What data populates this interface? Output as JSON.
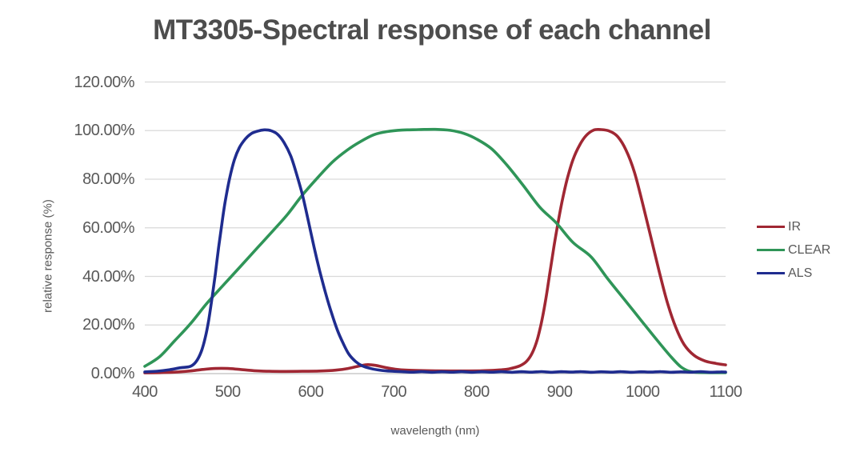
{
  "chart_data": {
    "type": "line",
    "title": "MT3305-Spectral response of each channel",
    "xlabel": "wavelength (nm)",
    "ylabel": "relative response (%)",
    "xlim": [
      400,
      1100
    ],
    "ylim_percent": [
      0,
      120
    ],
    "grid": "horizontal",
    "legend_position": "right",
    "x_ticks": [
      400,
      500,
      600,
      700,
      800,
      900,
      1000,
      1100
    ],
    "y_ticks": [
      {
        "value": 0,
        "label": "0.00%"
      },
      {
        "value": 20,
        "label": "20.00%"
      },
      {
        "value": 40,
        "label": "40.00%"
      },
      {
        "value": 60,
        "label": "60.00%"
      },
      {
        "value": 80,
        "label": "80.00%"
      },
      {
        "value": 100,
        "label": "100.00%"
      },
      {
        "value": 120,
        "label": "120.00%"
      }
    ],
    "series": [
      {
        "name": "IR",
        "color": "#a02733",
        "points": [
          [
            400,
            0.3
          ],
          [
            418,
            0.4
          ],
          [
            436,
            0.6
          ],
          [
            455,
            1.1
          ],
          [
            470,
            1.7
          ],
          [
            485,
            2.1
          ],
          [
            500,
            2.1
          ],
          [
            515,
            1.7
          ],
          [
            532,
            1.2
          ],
          [
            550,
            0.95
          ],
          [
            570,
            0.9
          ],
          [
            590,
            0.95
          ],
          [
            610,
            1.05
          ],
          [
            630,
            1.4
          ],
          [
            645,
            2.1
          ],
          [
            658,
            3.1
          ],
          [
            668,
            3.7
          ],
          [
            678,
            3.4
          ],
          [
            690,
            2.5
          ],
          [
            702,
            1.8
          ],
          [
            716,
            1.4
          ],
          [
            732,
            1.25
          ],
          [
            750,
            1.15
          ],
          [
            768,
            1.1
          ],
          [
            786,
            1.1
          ],
          [
            804,
            1.15
          ],
          [
            820,
            1.35
          ],
          [
            832,
            1.6
          ],
          [
            840,
            2
          ],
          [
            852,
            3.2
          ],
          [
            860,
            5
          ],
          [
            867,
            8.5
          ],
          [
            873,
            14
          ],
          [
            878,
            21
          ],
          [
            883,
            30
          ],
          [
            888,
            41
          ],
          [
            893,
            52
          ],
          [
            898,
            62
          ],
          [
            903,
            71
          ],
          [
            909,
            80
          ],
          [
            916,
            88
          ],
          [
            924,
            94
          ],
          [
            932,
            98
          ],
          [
            941,
            100.2
          ],
          [
            950,
            100.4
          ],
          [
            960,
            99.8
          ],
          [
            970,
            97.5
          ],
          [
            980,
            92
          ],
          [
            990,
            83
          ],
          [
            1000,
            70
          ],
          [
            1010,
            56
          ],
          [
            1020,
            42
          ],
          [
            1030,
            29
          ],
          [
            1040,
            19
          ],
          [
            1050,
            12
          ],
          [
            1062,
            7.5
          ],
          [
            1075,
            5.2
          ],
          [
            1088,
            4.2
          ],
          [
            1100,
            3.6
          ]
        ]
      },
      {
        "name": "CLEAR",
        "color": "#2f9558",
        "points": [
          [
            400,
            3
          ],
          [
            418,
            7
          ],
          [
            436,
            13.5
          ],
          [
            455,
            20.5
          ],
          [
            475,
            29
          ],
          [
            495,
            36.5
          ],
          [
            515,
            44
          ],
          [
            535,
            51.5
          ],
          [
            555,
            59
          ],
          [
            572,
            65.5
          ],
          [
            590,
            73.5
          ],
          [
            608,
            80.5
          ],
          [
            626,
            87
          ],
          [
            644,
            92
          ],
          [
            660,
            95.5
          ],
          [
            676,
            98.3
          ],
          [
            692,
            99.6
          ],
          [
            710,
            100.2
          ],
          [
            730,
            100.4
          ],
          [
            750,
            100.5
          ],
          [
            768,
            100.1
          ],
          [
            785,
            98.8
          ],
          [
            800,
            96.5
          ],
          [
            818,
            92.5
          ],
          [
            836,
            86
          ],
          [
            856,
            77.5
          ],
          [
            876,
            68.5
          ],
          [
            896,
            62
          ],
          [
            916,
            54
          ],
          [
            938,
            48
          ],
          [
            958,
            39
          ],
          [
            978,
            30.5
          ],
          [
            998,
            22
          ],
          [
            1018,
            13.5
          ],
          [
            1034,
            7
          ],
          [
            1046,
            2.8
          ],
          [
            1056,
            1
          ],
          [
            1066,
            0.5
          ],
          [
            1080,
            0.4
          ],
          [
            1100,
            0.4
          ]
        ]
      },
      {
        "name": "ALS",
        "color": "#1f2c8f",
        "points": [
          [
            400,
            0.7
          ],
          [
            415,
            1.0
          ],
          [
            430,
            1.6
          ],
          [
            443,
            2.4
          ],
          [
            455,
            3
          ],
          [
            462,
            5
          ],
          [
            468,
            9
          ],
          [
            473,
            15
          ],
          [
            477,
            22
          ],
          [
            481,
            31
          ],
          [
            485,
            41
          ],
          [
            489,
            52
          ],
          [
            493,
            62
          ],
          [
            497,
            71
          ],
          [
            502,
            80
          ],
          [
            508,
            88
          ],
          [
            514,
            93
          ],
          [
            521,
            96.5
          ],
          [
            528,
            98.7
          ],
          [
            536,
            99.8
          ],
          [
            544,
            100.3
          ],
          [
            552,
            100
          ],
          [
            560,
            98.5
          ],
          [
            568,
            95
          ],
          [
            576,
            89.5
          ],
          [
            583,
            82
          ],
          [
            590,
            73.5
          ],
          [
            597,
            63
          ],
          [
            604,
            52
          ],
          [
            611,
            42
          ],
          [
            618,
            33
          ],
          [
            625,
            25
          ],
          [
            632,
            18
          ],
          [
            639,
            12.5
          ],
          [
            646,
            8
          ],
          [
            654,
            5
          ],
          [
            662,
            3.2
          ],
          [
            671,
            2.2
          ],
          [
            681,
            1.5
          ],
          [
            692,
            1.1
          ],
          [
            704,
            0.9
          ],
          [
            710,
            0.8
          ],
          [
            722,
            0.6
          ],
          [
            734,
            0.8
          ],
          [
            746,
            0.55
          ],
          [
            758,
            0.75
          ],
          [
            770,
            0.6
          ],
          [
            782,
            0.8
          ],
          [
            794,
            0.55
          ],
          [
            806,
            0.75
          ],
          [
            818,
            0.6
          ],
          [
            830,
            0.8
          ],
          [
            842,
            0.55
          ],
          [
            854,
            0.78
          ],
          [
            866,
            0.6
          ],
          [
            878,
            0.82
          ],
          [
            890,
            0.55
          ],
          [
            902,
            0.78
          ],
          [
            914,
            0.62
          ],
          [
            926,
            0.8
          ],
          [
            938,
            0.55
          ],
          [
            950,
            0.75
          ],
          [
            962,
            0.6
          ],
          [
            974,
            0.8
          ],
          [
            986,
            0.55
          ],
          [
            998,
            0.75
          ],
          [
            1010,
            0.62
          ],
          [
            1022,
            0.8
          ],
          [
            1034,
            0.55
          ],
          [
            1046,
            0.72
          ],
          [
            1058,
            0.6
          ],
          [
            1070,
            0.78
          ],
          [
            1082,
            0.55
          ],
          [
            1094,
            0.7
          ],
          [
            1100,
            0.62
          ]
        ]
      }
    ]
  },
  "colors": {
    "title_text": "#4d4d4d",
    "axis_text": "#595959",
    "grid_line": "#d9d9d9",
    "axis_line": "#bfbfbf",
    "background": "#ffffff"
  }
}
